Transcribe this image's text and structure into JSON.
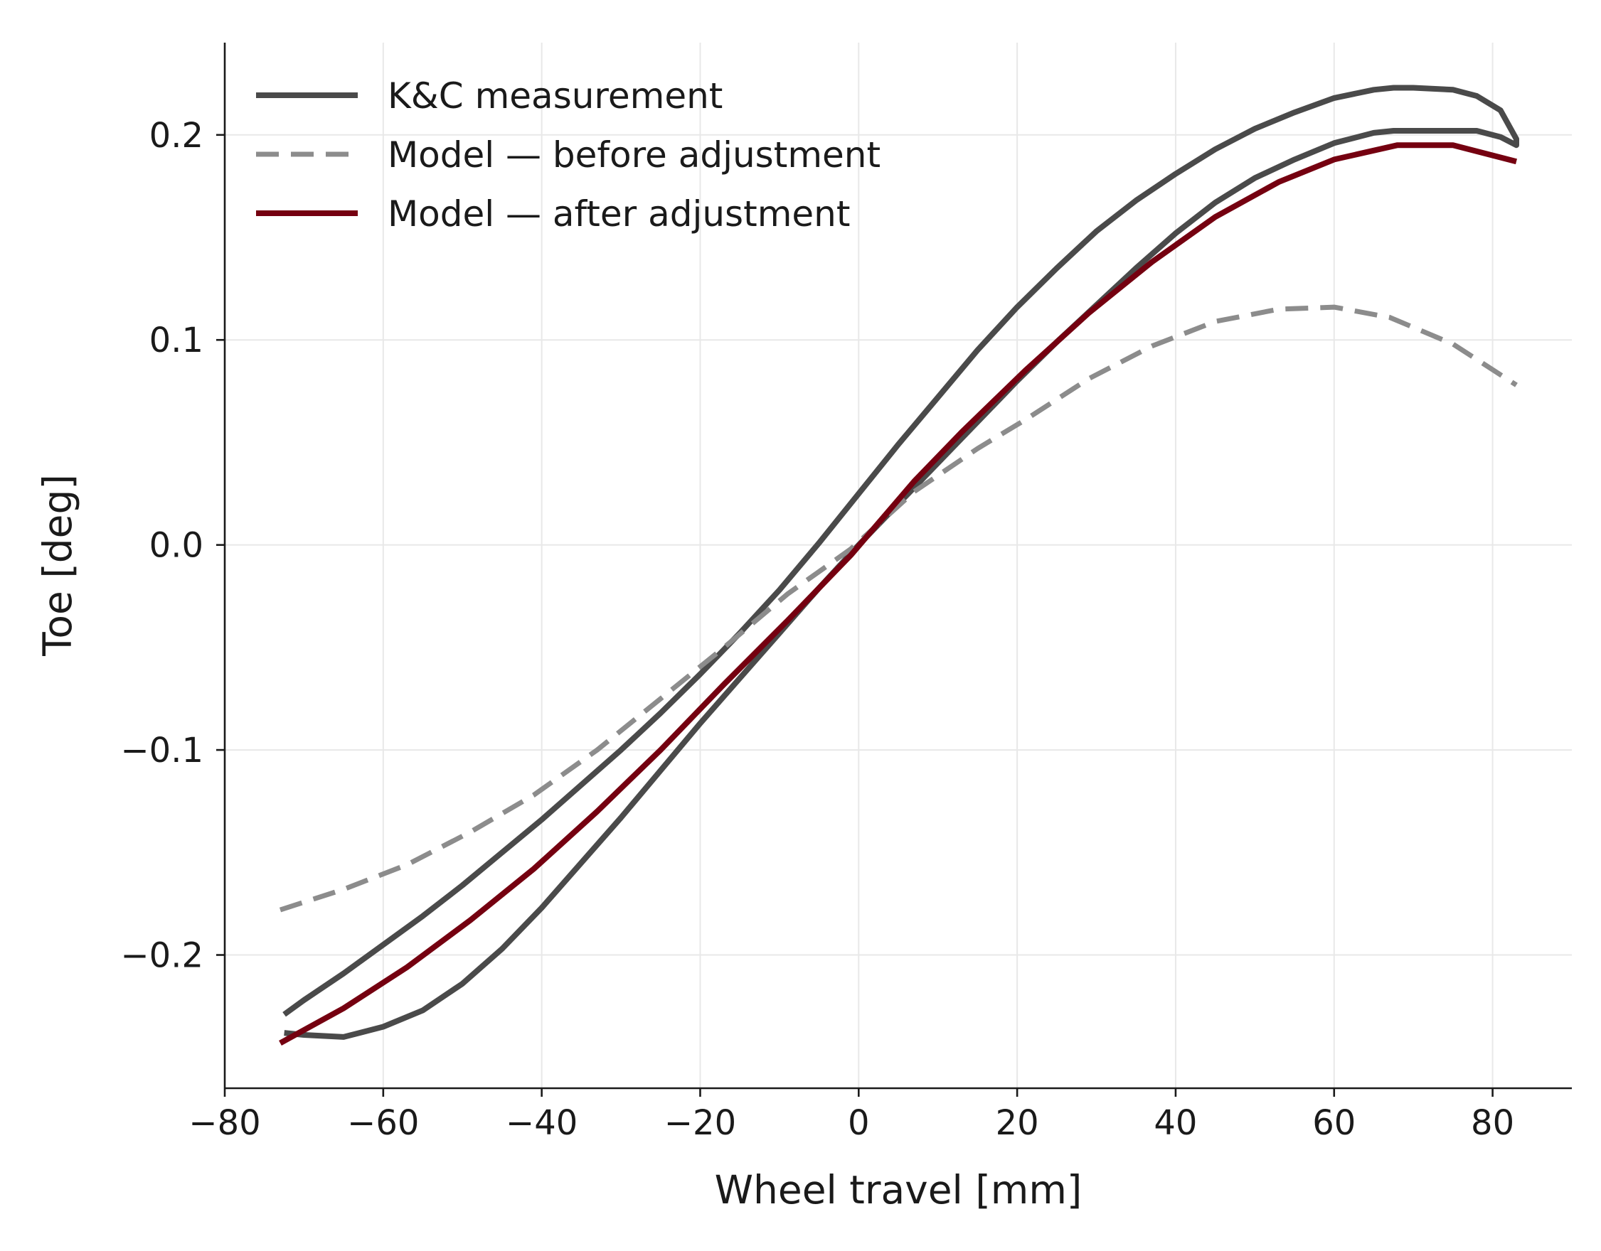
{
  "chart_data": {
    "type": "line",
    "title": "",
    "xlabel": "Wheel travel [mm]",
    "ylabel": "Toe [deg]",
    "xlim": [
      -80,
      90
    ],
    "ylim": [
      -0.265,
      0.245
    ],
    "xticks": [
      -80,
      -60,
      -40,
      -20,
      0,
      20,
      40,
      60,
      80
    ],
    "xtick_labels": [
      "−80",
      "−60",
      "−40",
      "−20",
      "0",
      "20",
      "40",
      "60",
      "80"
    ],
    "yticks": [
      -0.2,
      -0.1,
      0.0,
      0.1,
      0.2
    ],
    "ytick_labels": [
      "−0.2",
      "−0.1",
      "0.0",
      "0.1",
      "0.2"
    ],
    "grid": true,
    "legend_position": "upper-left",
    "series": [
      {
        "name": "K&C measurement",
        "color": "#4a4a4a",
        "style": "solid",
        "loop": true,
        "x": [
          -72.5,
          -70,
          -65,
          -60,
          -55,
          -50,
          -45,
          -40,
          -35,
          -30,
          -25,
          -20,
          -15,
          -10,
          -5,
          0,
          5,
          10,
          15,
          20,
          25,
          30,
          35,
          40,
          45,
          50,
          55,
          60,
          65,
          67.5,
          70,
          75,
          78,
          81,
          83,
          83,
          81,
          78,
          75,
          70,
          67.5,
          65,
          60,
          55,
          50,
          45,
          40,
          35,
          30,
          25,
          20,
          15,
          10,
          5,
          0,
          -5,
          -10,
          -15,
          -20,
          -25,
          -30,
          -35,
          -40,
          -45,
          -50,
          -55,
          -60,
          -65,
          -70,
          -72.5
        ],
        "y": [
          -0.229,
          -0.222,
          -0.209,
          -0.195,
          -0.181,
          -0.166,
          -0.15,
          -0.134,
          -0.117,
          -0.1,
          -0.082,
          -0.063,
          -0.043,
          -0.022,
          0.001,
          0.025,
          0.049,
          0.072,
          0.095,
          0.116,
          0.135,
          0.153,
          0.168,
          0.181,
          0.193,
          0.203,
          0.211,
          0.218,
          0.222,
          0.223,
          0.223,
          0.222,
          0.219,
          0.212,
          0.198,
          0.195,
          0.199,
          0.202,
          0.202,
          0.202,
          0.202,
          0.201,
          0.196,
          0.188,
          0.179,
          0.167,
          0.152,
          0.135,
          0.117,
          0.099,
          0.08,
          0.06,
          0.04,
          0.02,
          0.0,
          -0.021,
          -0.043,
          -0.065,
          -0.087,
          -0.11,
          -0.133,
          -0.155,
          -0.177,
          -0.197,
          -0.214,
          -0.227,
          -0.235,
          -0.24,
          -0.239,
          -0.238
        ]
      },
      {
        "name": "Model — before adjustment",
        "color": "#8c8c8c",
        "style": "dashed",
        "x": [
          -73,
          -65,
          -57,
          -49,
          -41,
          -33,
          -25,
          -17,
          -9,
          -1,
          7,
          15,
          21,
          29,
          37,
          45,
          53,
          60,
          67,
          75,
          83
        ],
        "y": [
          -0.178,
          -0.168,
          -0.156,
          -0.14,
          -0.122,
          -0.1,
          -0.075,
          -0.05,
          -0.024,
          -0.002,
          0.026,
          0.047,
          0.061,
          0.081,
          0.097,
          0.109,
          0.115,
          0.116,
          0.111,
          0.098,
          0.078
        ]
      },
      {
        "name": "Model — after adjustment",
        "color": "#750010",
        "style": "solid",
        "x": [
          -73,
          -65,
          -57,
          -49,
          -41,
          -33,
          -25,
          -17,
          -9,
          -1,
          7,
          13,
          21,
          29,
          37,
          45,
          53,
          60,
          68,
          75,
          83
        ],
        "y": [
          -0.243,
          -0.226,
          -0.206,
          -0.183,
          -0.158,
          -0.13,
          -0.1,
          -0.068,
          -0.037,
          -0.005,
          0.031,
          0.055,
          0.085,
          0.113,
          0.138,
          0.16,
          0.177,
          0.188,
          0.195,
          0.195,
          0.187
        ]
      }
    ]
  }
}
